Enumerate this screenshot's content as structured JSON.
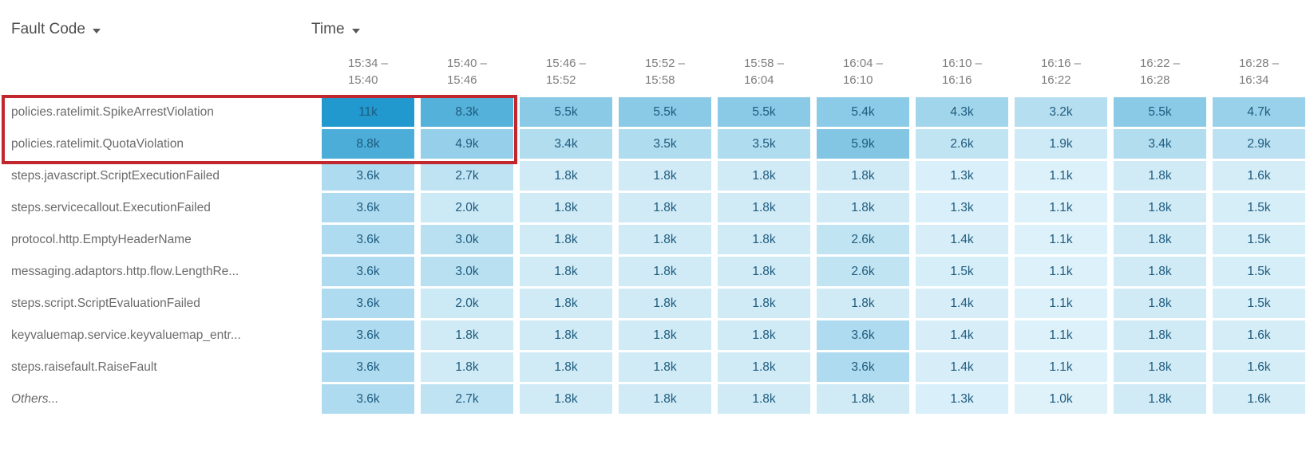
{
  "controls": {
    "fault_code_sort": "Fault Code",
    "time_sort": "Time"
  },
  "chart_data": {
    "type": "heatmap",
    "title": "",
    "row_axis_label": "Fault Code",
    "col_axis_label": "Time",
    "legend": "none",
    "grid": "off",
    "columns": [
      {
        "line1": "15:34 –",
        "line2": "15:40"
      },
      {
        "line1": "15:40 –",
        "line2": "15:46"
      },
      {
        "line1": "15:46 –",
        "line2": "15:52"
      },
      {
        "line1": "15:52 –",
        "line2": "15:58"
      },
      {
        "line1": "15:58 –",
        "line2": "16:04"
      },
      {
        "line1": "16:04 –",
        "line2": "16:10"
      },
      {
        "line1": "16:10 –",
        "line2": "16:16"
      },
      {
        "line1": "16:16 –",
        "line2": "16:22"
      },
      {
        "line1": "16:22 –",
        "line2": "16:28"
      },
      {
        "line1": "16:28 –",
        "line2": "16:34"
      }
    ],
    "rows": [
      {
        "label": "policies.ratelimit.SpikeArrestViolation",
        "italic": false,
        "values": [
          "11k",
          "8.3k",
          "5.5k",
          "5.5k",
          "5.5k",
          "5.4k",
          "4.3k",
          "3.2k",
          "5.5k",
          "4.7k"
        ],
        "values_numeric": [
          11000,
          8300,
          5500,
          5500,
          5500,
          5400,
          4300,
          3200,
          5500,
          4700
        ]
      },
      {
        "label": "policies.ratelimit.QuotaViolation",
        "italic": false,
        "values": [
          "8.8k",
          "4.9k",
          "3.4k",
          "3.5k",
          "3.5k",
          "5.9k",
          "2.6k",
          "1.9k",
          "3.4k",
          "2.9k"
        ],
        "values_numeric": [
          8800,
          4900,
          3400,
          3500,
          3500,
          5900,
          2600,
          1900,
          3400,
          2900
        ]
      },
      {
        "label": "steps.javascript.ScriptExecutionFailed",
        "italic": false,
        "values": [
          "3.6k",
          "2.7k",
          "1.8k",
          "1.8k",
          "1.8k",
          "1.8k",
          "1.3k",
          "1.1k",
          "1.8k",
          "1.6k"
        ],
        "values_numeric": [
          3600,
          2700,
          1800,
          1800,
          1800,
          1800,
          1300,
          1100,
          1800,
          1600
        ]
      },
      {
        "label": "steps.servicecallout.ExecutionFailed",
        "italic": false,
        "values": [
          "3.6k",
          "2.0k",
          "1.8k",
          "1.8k",
          "1.8k",
          "1.8k",
          "1.3k",
          "1.1k",
          "1.8k",
          "1.5k"
        ],
        "values_numeric": [
          3600,
          2000,
          1800,
          1800,
          1800,
          1800,
          1300,
          1100,
          1800,
          1500
        ]
      },
      {
        "label": "protocol.http.EmptyHeaderName",
        "italic": false,
        "values": [
          "3.6k",
          "3.0k",
          "1.8k",
          "1.8k",
          "1.8k",
          "2.6k",
          "1.4k",
          "1.1k",
          "1.8k",
          "1.5k"
        ],
        "values_numeric": [
          3600,
          3000,
          1800,
          1800,
          1800,
          2600,
          1400,
          1100,
          1800,
          1500
        ]
      },
      {
        "label": "messaging.adaptors.http.flow.LengthRe...",
        "italic": false,
        "values": [
          "3.6k",
          "3.0k",
          "1.8k",
          "1.8k",
          "1.8k",
          "2.6k",
          "1.5k",
          "1.1k",
          "1.8k",
          "1.5k"
        ],
        "values_numeric": [
          3600,
          3000,
          1800,
          1800,
          1800,
          2600,
          1500,
          1100,
          1800,
          1500
        ]
      },
      {
        "label": "steps.script.ScriptEvaluationFailed",
        "italic": false,
        "values": [
          "3.6k",
          "2.0k",
          "1.8k",
          "1.8k",
          "1.8k",
          "1.8k",
          "1.4k",
          "1.1k",
          "1.8k",
          "1.5k"
        ],
        "values_numeric": [
          3600,
          2000,
          1800,
          1800,
          1800,
          1800,
          1400,
          1100,
          1800,
          1500
        ]
      },
      {
        "label": "keyvaluemap.service.keyvaluemap_entr...",
        "italic": false,
        "values": [
          "3.6k",
          "1.8k",
          "1.8k",
          "1.8k",
          "1.8k",
          "3.6k",
          "1.4k",
          "1.1k",
          "1.8k",
          "1.6k"
        ],
        "values_numeric": [
          3600,
          1800,
          1800,
          1800,
          1800,
          3600,
          1400,
          1100,
          1800,
          1600
        ]
      },
      {
        "label": "steps.raisefault.RaiseFault",
        "italic": false,
        "values": [
          "3.6k",
          "1.8k",
          "1.8k",
          "1.8k",
          "1.8k",
          "3.6k",
          "1.4k",
          "1.1k",
          "1.8k",
          "1.6k"
        ],
        "values_numeric": [
          3600,
          1800,
          1800,
          1800,
          1800,
          3600,
          1400,
          1100,
          1800,
          1600
        ]
      },
      {
        "label": "Others...",
        "italic": true,
        "values": [
          "3.6k",
          "2.7k",
          "1.8k",
          "1.8k",
          "1.8k",
          "1.8k",
          "1.3k",
          "1.0k",
          "1.8k",
          "1.6k"
        ],
        "values_numeric": [
          3600,
          2700,
          1800,
          1800,
          1800,
          1800,
          1300,
          1000,
          1800,
          1600
        ]
      }
    ],
    "color_scale": {
      "min_value": 1000,
      "max_value": 11000,
      "min_color": "#DFF2FA",
      "max_color": "#2199CE"
    },
    "cell_text_color": "#1E5B7E"
  },
  "annotation": {
    "shape": "rectangle",
    "border_color": "#C1272D",
    "highlights": "policies.ratelimit.SpikeArrestViolation and policies.ratelimit.QuotaViolation rows for intervals 15:34 – 15:40 and 15:40 – 15:46"
  }
}
